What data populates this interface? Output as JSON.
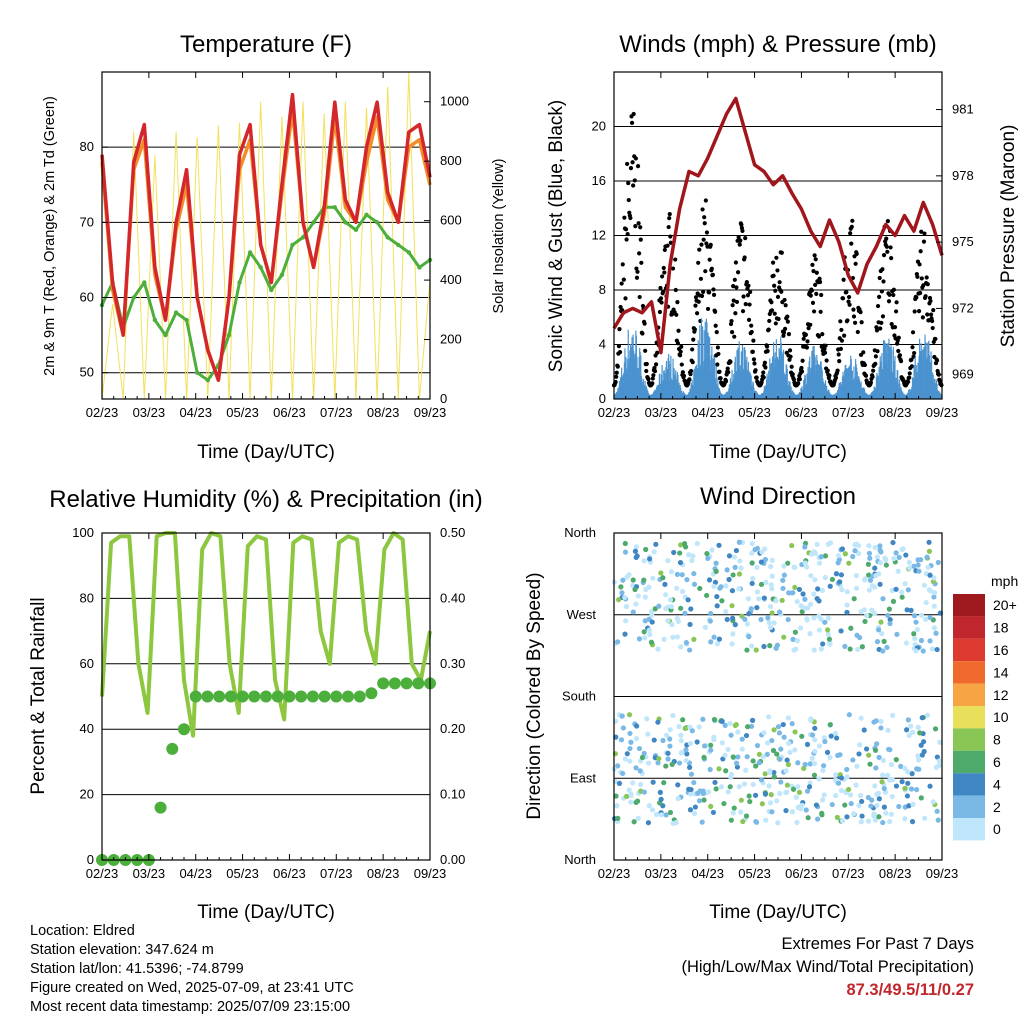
{
  "x_ticks": [
    "02/23",
    "03/23",
    "04/23",
    "05/23",
    "06/23",
    "07/23",
    "08/23",
    "09/23"
  ],
  "chart_data": [
    {
      "type": "line",
      "title": "Temperature (F)",
      "xlabel": "Time (Day/UTC)",
      "ylabel": "2m & 9m T (Red, Orange) & 2m Td (Green)",
      "y2label": "Solar Insolation (Yellow)",
      "ylim": [
        46.5,
        90
      ],
      "yticks": [
        50,
        60,
        70,
        80
      ],
      "y2lim": [
        0,
        1100
      ],
      "y2ticks": [
        0,
        200,
        400,
        600,
        800,
        1000
      ],
      "grid": true,
      "colors": {
        "t2m": "#d4272b",
        "t9m": "#f28c28",
        "td": "#4cae3b",
        "solar": "#f3e05a"
      },
      "series": [
        {
          "name": "2m T",
          "values": [
            79,
            62,
            55,
            78,
            83,
            64,
            57,
            70,
            77,
            60,
            53,
            49,
            60,
            79,
            83,
            67,
            62,
            75,
            87,
            70,
            64,
            72,
            86,
            73,
            70,
            80,
            86,
            74,
            70,
            82,
            83,
            76
          ]
        },
        {
          "name": "9m T",
          "values": [
            78,
            61,
            55,
            77,
            81,
            63,
            57,
            69,
            75,
            60,
            53,
            49,
            60,
            77,
            81,
            67,
            62,
            74,
            85,
            70,
            64,
            71,
            84,
            72,
            70,
            78,
            84,
            73,
            70,
            80,
            81,
            75
          ]
        },
        {
          "name": "2m Td",
          "values": [
            59,
            62,
            56,
            60,
            62,
            57,
            55,
            58,
            57,
            50,
            49,
            51,
            55,
            62,
            66,
            64,
            61,
            63,
            67,
            68,
            70,
            72,
            72,
            70,
            69,
            71,
            70,
            68,
            67,
            66,
            64,
            65
          ]
        },
        {
          "name": "Solar",
          "values": [
            0,
            320,
            0,
            900,
            0,
            820,
            0,
            900,
            0,
            880,
            0,
            920,
            0,
            930,
            0,
            1000,
            0,
            950,
            0,
            1000,
            0,
            960,
            0,
            1000,
            0,
            980,
            0,
            1050,
            0,
            1100,
            0,
            400
          ]
        }
      ]
    },
    {
      "type": "scatter",
      "title": "Winds (mph) & Pressure (mb)",
      "xlabel": "Time (Day/UTC)",
      "ylabel": "Sonic Wind & Gust (Blue, Black)",
      "y2label": "Station Pressure (Maroon)",
      "ylim": [
        0,
        24
      ],
      "yticks": [
        0,
        4,
        8,
        12,
        16,
        20
      ],
      "y2lim": [
        967.9,
        982.7
      ],
      "y2ticks": [
        969,
        972,
        975,
        978,
        981
      ],
      "grid": true,
      "colors": {
        "wind": "#4b93cf",
        "gust": "#000000",
        "pressure": "#a0161c"
      },
      "series": [
        {
          "name": "Station Pressure",
          "values": [
            971.1,
            971.8,
            972.0,
            971.8,
            972.3,
            970.0,
            974.0,
            976.5,
            978.2,
            978.0,
            978.8,
            979.8,
            980.8,
            981.5,
            980.0,
            978.5,
            978.2,
            977.6,
            978.0,
            977.2,
            976.5,
            975.5,
            974.8,
            976.0,
            975.0,
            973.5,
            972.7,
            974.0,
            974.8,
            975.8,
            975.3,
            976.2,
            975.5,
            976.8,
            975.8,
            974.4
          ]
        },
        {
          "name": "Sonic Wind",
          "peaks": [
            6,
            3.5,
            7,
            4.5,
            5,
            4,
            3.5,
            5,
            5.5
          ]
        },
        {
          "name": "Gust",
          "peaks": [
            22,
            14,
            15,
            14,
            12,
            11,
            14,
            14,
            13
          ]
        }
      ]
    },
    {
      "type": "line",
      "title": "Relative Humidity (%) & Precipitation (in)",
      "xlabel": "Time (Day/UTC)",
      "ylabel": "Percent & Total Rainfall",
      "ylim": [
        0,
        100
      ],
      "yticks": [
        0,
        20,
        40,
        60,
        80,
        100
      ],
      "y2lim": [
        0,
        0.5
      ],
      "y2ticks": [
        "0.00",
        "0.10",
        "0.20",
        "0.30",
        "0.40",
        "0.50"
      ],
      "grid": true,
      "colors": {
        "rh": "#8dc63f",
        "precip": "#4cae3b"
      },
      "series": [
        {
          "name": "RH",
          "values": [
            50,
            97,
            99,
            99,
            60,
            45,
            99,
            100,
            100,
            55,
            38,
            95,
            100,
            99,
            60,
            45,
            96,
            99,
            98,
            55,
            43,
            97,
            99,
            98,
            70,
            60,
            97,
            99,
            98,
            70,
            60,
            95,
            100,
            98,
            60,
            55,
            70
          ]
        },
        {
          "name": "Precipitation",
          "values": [
            0.0,
            0.0,
            0.0,
            0.0,
            0.0,
            0.08,
            0.17,
            0.2,
            0.25,
            0.25,
            0.25,
            0.25,
            0.25,
            0.25,
            0.25,
            0.25,
            0.25,
            0.25,
            0.25,
            0.25,
            0.25,
            0.25,
            0.25,
            0.255,
            0.27,
            0.27,
            0.27,
            0.27,
            0.27
          ]
        }
      ]
    },
    {
      "type": "scatter",
      "title": "Wind Direction",
      "xlabel": "Time (Day/UTC)",
      "ylabel": "Direction (Colored By Speed)",
      "ylim": [
        0,
        360
      ],
      "yticks": [
        "North",
        "East",
        "South",
        "West",
        "North"
      ],
      "grid": true,
      "legend": {
        "title": "mph",
        "placement": "right",
        "labels": [
          "20+",
          "18",
          "16",
          "14",
          "12",
          "10",
          "8",
          "6",
          "4",
          "2",
          "0"
        ],
        "colors": [
          "#9e1a1f",
          "#c0272d",
          "#dd3b2f",
          "#f06a2e",
          "#f7a544",
          "#e8e05a",
          "#8ac656",
          "#4daa6a",
          "#3f86c3",
          "#7ab8e6",
          "#bfe6fa"
        ]
      }
    }
  ],
  "info": {
    "location": "Location: Eldred",
    "elevation": "Station elevation: 347.624 m",
    "latlon": "Station lat/lon: 41.5396; -74.8799",
    "created": "Figure created on Wed, 2025-07-09, at 23:41 UTC",
    "recent": "Most recent data timestamp: 2025/07/09 23:15:00"
  },
  "extremes": {
    "title": "Extremes For Past 7 Days",
    "subtitle": "(High/Low/Max Wind/Total Precipitation)",
    "values": "87.3/49.5/11/0.27"
  }
}
